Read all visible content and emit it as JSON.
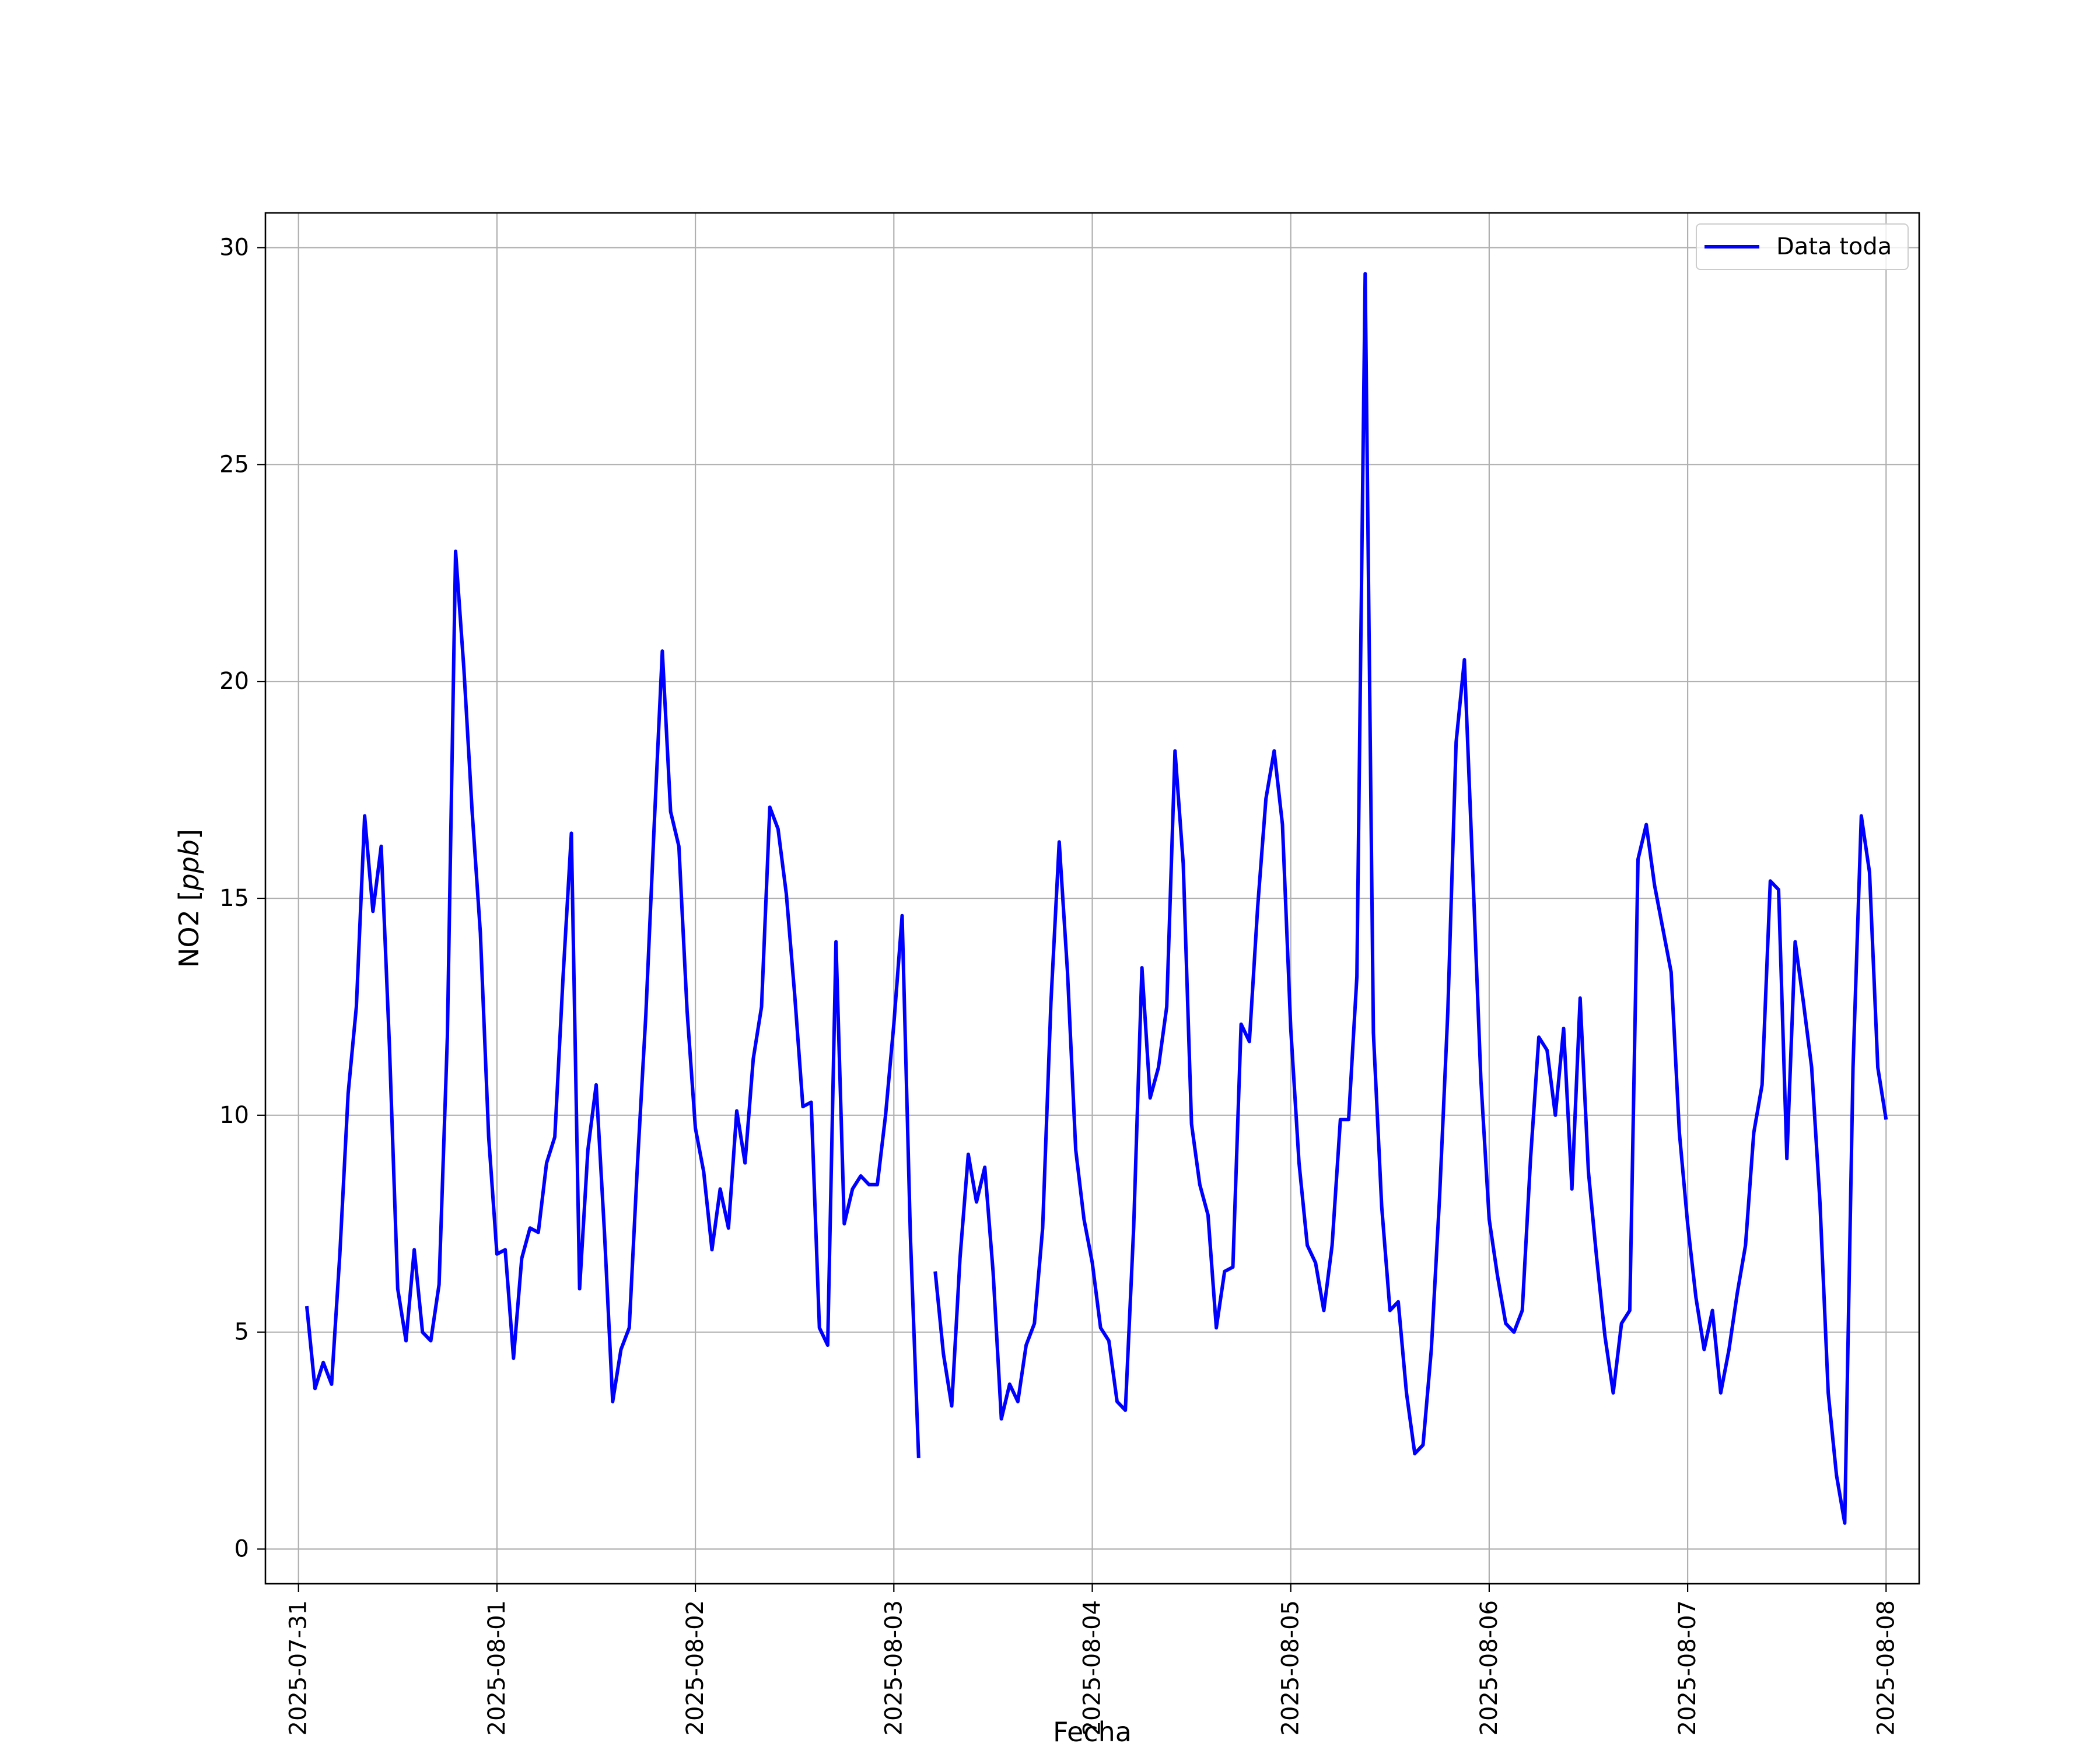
{
  "chart_data": {
    "type": "line",
    "title": "",
    "xlabel": "Fecha",
    "ylabel_prefix": "NO2 [",
    "ylabel_unit": "ppb",
    "ylabel_suffix": "]",
    "xlim": [
      "2025-07-30T20:00",
      "2025-08-08T04:00"
    ],
    "ylim": [
      -0.8,
      30.8
    ],
    "grid": true,
    "legend_position": "top-right",
    "x_ticks": [
      "2025-07-31",
      "2025-08-01",
      "2025-08-02",
      "2025-08-03",
      "2025-08-04",
      "2025-08-05",
      "2025-08-06",
      "2025-08-07",
      "2025-08-08"
    ],
    "y_ticks": [
      "0",
      "5",
      "10",
      "15",
      "20",
      "25",
      "30"
    ],
    "series": [
      {
        "name": "Data toda",
        "color": "#0000ff",
        "x_start": "2025-07-31T01:00",
        "step_hours": 1,
        "values": [
          5.6,
          3.7,
          4.3,
          3.8,
          6.8,
          10.5,
          12.5,
          16.9,
          14.7,
          16.2,
          11.6,
          6.0,
          4.8,
          6.9,
          5.0,
          4.8,
          6.1,
          11.8,
          23.0,
          20.3,
          17.0,
          14.2,
          9.5,
          6.8,
          6.9,
          4.4,
          6.7,
          7.4,
          7.3,
          8.9,
          9.5,
          13.2,
          16.5,
          6.0,
          9.2,
          10.7,
          7.3,
          3.4,
          4.6,
          5.1,
          8.9,
          12.3,
          16.6,
          20.7,
          17.0,
          16.2,
          12.4,
          9.7,
          8.7,
          6.9,
          8.3,
          7.4,
          10.1,
          8.9,
          11.3,
          12.5,
          17.1,
          16.6,
          15.1,
          12.8,
          10.2,
          10.3,
          5.1,
          4.7,
          14.0,
          7.5,
          8.3,
          8.6,
          8.4,
          8.4,
          10.0,
          12.1,
          14.6,
          7.2,
          2.1,
          null,
          6.4,
          4.5,
          3.3,
          6.7,
          9.1,
          8.0,
          8.8,
          6.4,
          3.0,
          3.8,
          3.4,
          4.7,
          5.2,
          7.4,
          12.6,
          16.3,
          13.3,
          9.2,
          7.6,
          6.6,
          5.1,
          4.8,
          3.4,
          3.2,
          7.4,
          13.4,
          10.4,
          11.1,
          12.5,
          18.4,
          15.8,
          9.8,
          8.4,
          7.7,
          5.1,
          6.4,
          6.5,
          12.1,
          11.7,
          14.8,
          17.3,
          18.4,
          16.7,
          12.0,
          8.9,
          7.0,
          6.6,
          5.5,
          7.0,
          9.9,
          9.9,
          13.2,
          29.4,
          11.9,
          7.9,
          5.5,
          5.7,
          3.6,
          2.2,
          2.4,
          4.6,
          8.1,
          12.4,
          18.6,
          20.5,
          15.7,
          10.8,
          7.6,
          6.3,
          5.2,
          5.0,
          5.5,
          9.0,
          11.8,
          11.5,
          10.0,
          12.0,
          8.3,
          12.7,
          8.7,
          6.7,
          4.9,
          3.6,
          5.2,
          5.5,
          15.9,
          16.7,
          15.3,
          14.3,
          13.3,
          9.6,
          7.5,
          5.8,
          4.6,
          5.5,
          3.6,
          4.6,
          5.9,
          7.0,
          9.6,
          10.7,
          15.4,
          15.2,
          9.0,
          14.0,
          12.6,
          11.1,
          8.0,
          3.6,
          1.7,
          0.6,
          11.1,
          16.9,
          15.6,
          11.1,
          9.9
        ]
      }
    ]
  }
}
